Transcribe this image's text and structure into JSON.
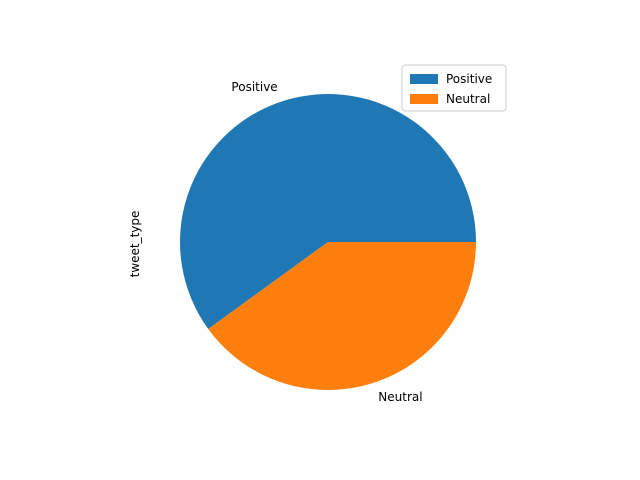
{
  "chart_data": {
    "type": "pie",
    "ylabel": "tweet_type",
    "labels": [
      "Positive",
      "Neutral"
    ],
    "values": [
      60,
      40
    ],
    "colors": [
      "#1f77b4",
      "#ff7f0e"
    ],
    "legend": {
      "placement": "top-right",
      "entries": [
        "Positive",
        "Neutral"
      ]
    },
    "start_angle_deg": 0,
    "direction": "counterclockwise"
  }
}
